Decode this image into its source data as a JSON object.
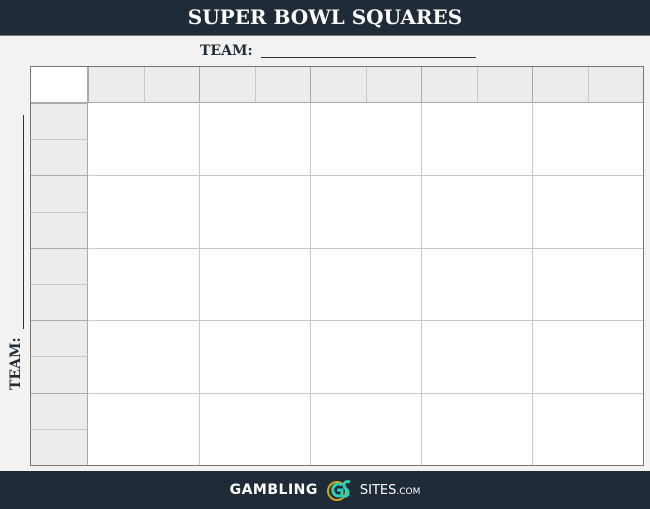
{
  "header": {
    "title": "SUPER BOWL SQUARES"
  },
  "top_team": {
    "label": "TEAM:"
  },
  "side_team": {
    "label": "TEAM:"
  },
  "grid": {
    "columns": 10,
    "rows": 10,
    "header_color": "#ececec",
    "line_color": "#c8c8c8"
  },
  "footer": {
    "brand_left": "GAMBLING",
    "brand_right": "SITES",
    "brand_suffix": ".COM",
    "logo_icon": "gs-logo-icon",
    "accent": "#2ad1b4",
    "ring": "#d4a21c"
  }
}
